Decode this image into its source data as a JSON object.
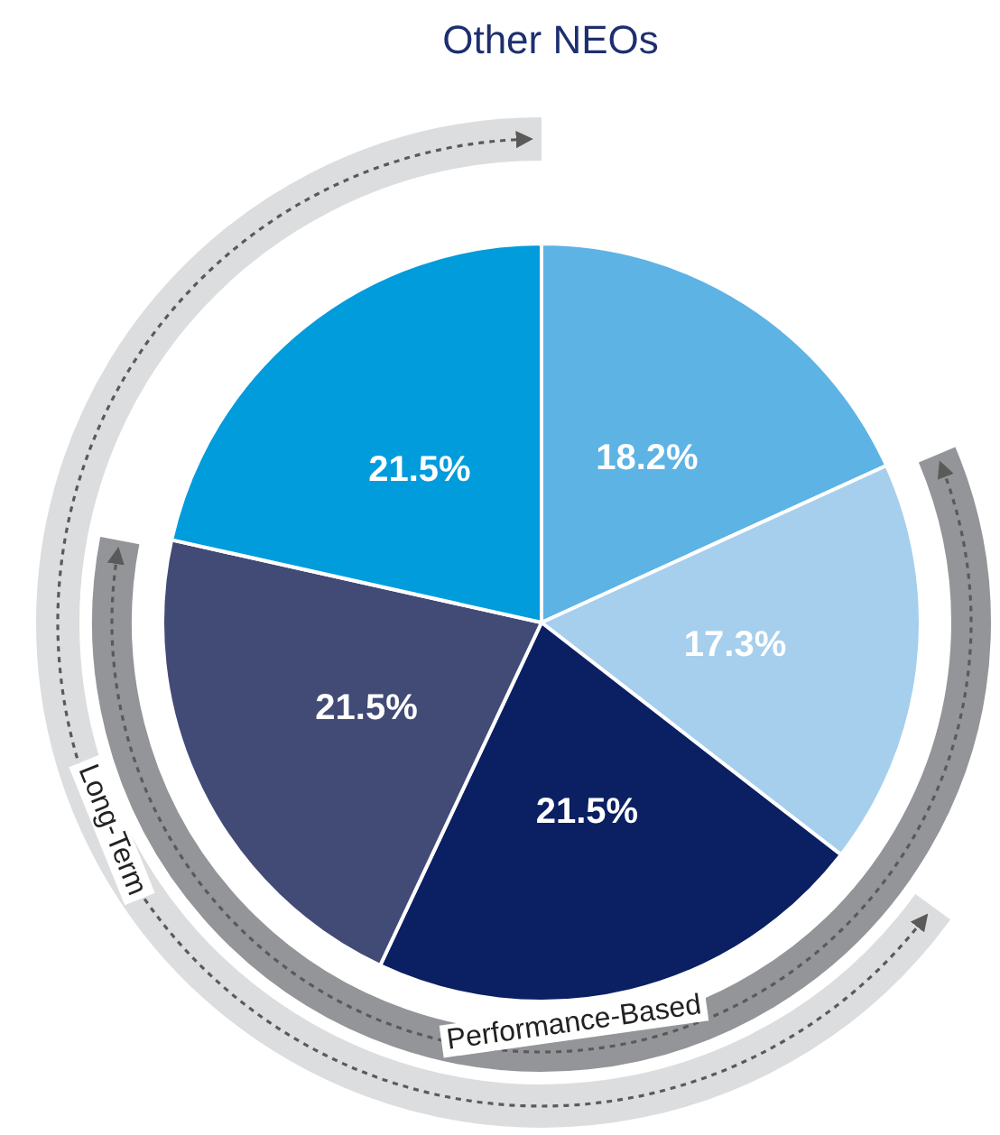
{
  "chart_data": {
    "type": "pie",
    "title": "Other NEOs",
    "categories": [
      null,
      null,
      null,
      null,
      null
    ],
    "values": [
      18.2,
      17.3,
      21.5,
      21.5,
      21.5
    ],
    "colors": [
      "#5db3e4",
      "#a6cfee",
      "#0b2063",
      "#424a76",
      "#009cdc"
    ],
    "value_labels": [
      "18.2%",
      "17.3%",
      "21.5%",
      "21.5%",
      "21.5%"
    ],
    "annotations": [
      "Long-Term",
      "Performance-Based"
    ]
  }
}
